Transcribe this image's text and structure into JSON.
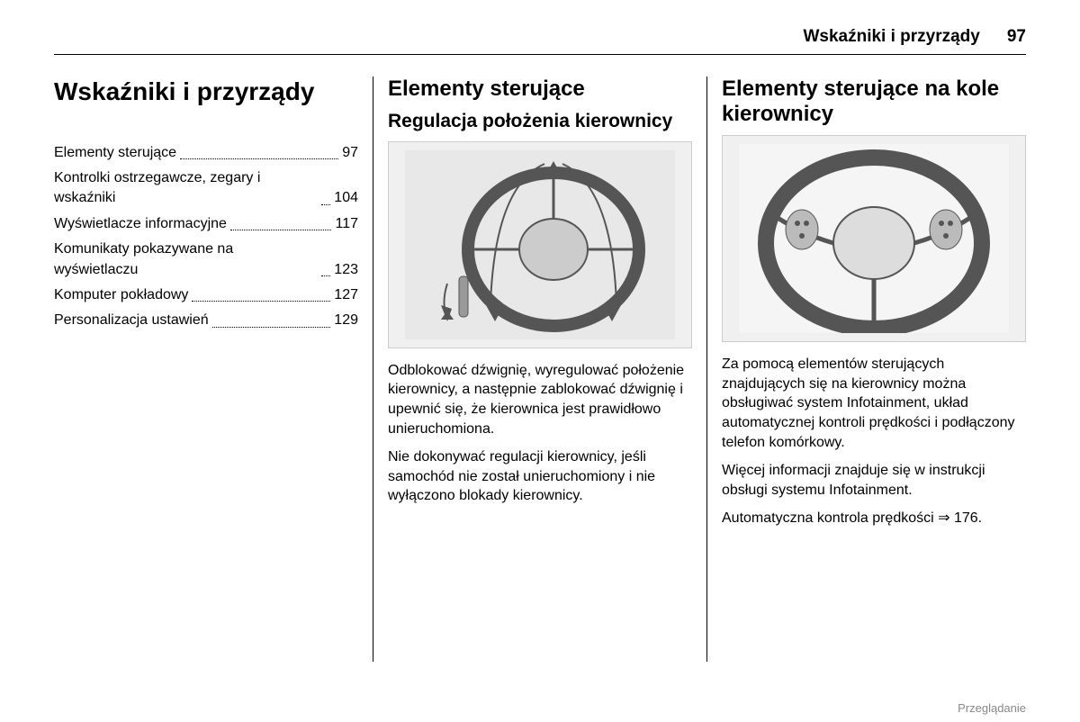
{
  "header": {
    "title": "Wskaźniki i przyrządy",
    "page": "97"
  },
  "col1": {
    "main_title": "Wskaźniki i przyrządy",
    "toc": [
      {
        "label": "Elementy sterujące",
        "page": "97"
      },
      {
        "label": "Kontrolki ostrzegawcze, zegary i wskaźniki",
        "page": "104"
      },
      {
        "label": "Wyświetlacze informacyjne",
        "page": "117"
      },
      {
        "label": "Komunikaty pokazywane na wyświetlaczu",
        "page": "123"
      },
      {
        "label": "Komputer pokładowy",
        "page": "127"
      },
      {
        "label": "Personalizacja ustawień",
        "page": "129"
      }
    ]
  },
  "col2": {
    "section_title": "Elementy sterujące",
    "subsection_title": "Regulacja położenia kierownicy",
    "para1": "Odblokować dźwignię, wyregulować położenie kierownicy, a następnie zablokować dźwignię i upewnić się, że kierownica jest prawidłowo unieruchomiona.",
    "para2": "Nie dokonywać regulacji kierownicy, jeśli samochód nie został unieruchomiony i nie wyłączono blokady kierownicy."
  },
  "col3": {
    "section_title": "Elementy sterujące na kole kierownicy",
    "para1": "Za pomocą elementów sterujących znajdujących się na kierownicy można obsługiwać system Infotainment, układ automatycznej kontroli prędkości i podłączony telefon komórkowy.",
    "para2": "Więcej informacji znajduje się w instrukcji obsługi systemu Infotainment.",
    "para3_prefix": "Automatyczna kontrola prędkości",
    "para3_ref": "176."
  },
  "footer": "Przeglądanie",
  "figures": {
    "steering_adjust": {
      "type": "illustration",
      "description": "steering-wheel-adjustment-diagram",
      "colors": {
        "stroke": "#555555",
        "fill": "#cccccc",
        "bg": "#e8e8e8"
      }
    },
    "steering_controls": {
      "type": "illustration",
      "description": "steering-wheel-controls-diagram",
      "colors": {
        "stroke": "#555555",
        "fill": "#dddddd",
        "bg": "#f5f5f5"
      }
    }
  }
}
